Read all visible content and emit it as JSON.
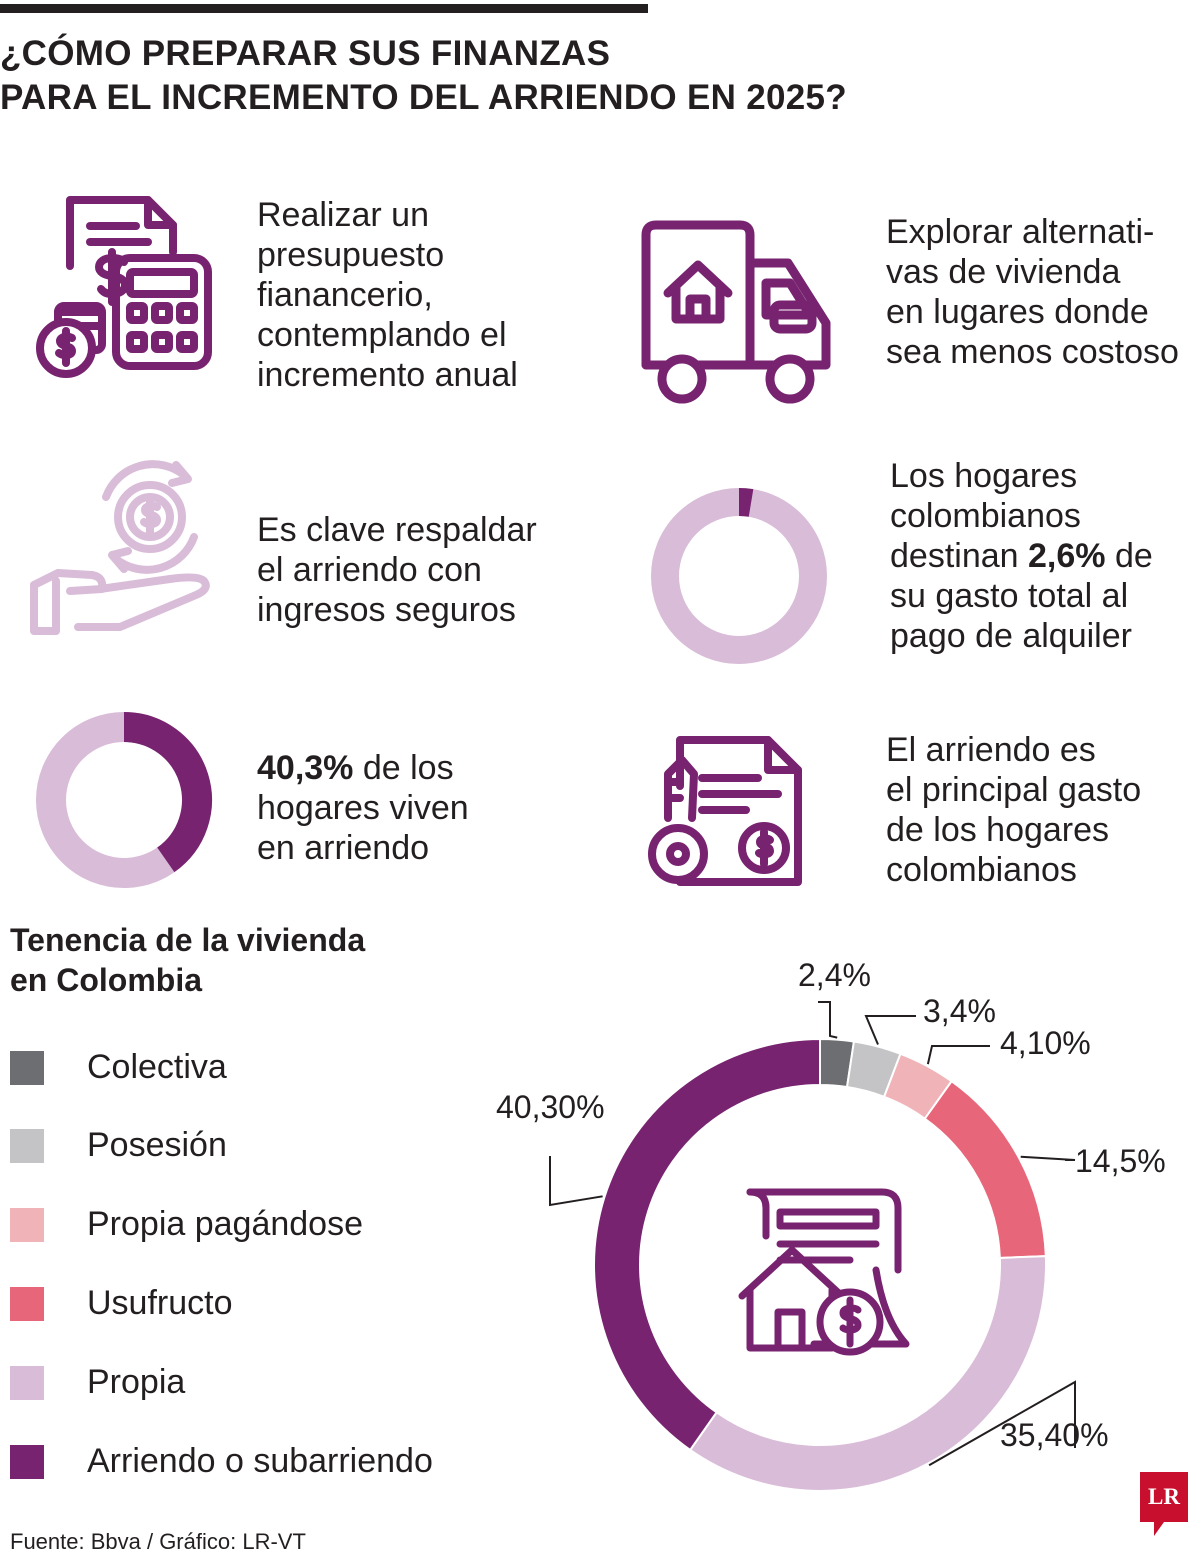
{
  "header": {
    "title_line1": "¿CÓMO PREPARAR SUS FINANZAS",
    "title_line2": "PARA EL INCREMENTO DEL ARRIENDO EN 2025?"
  },
  "tips": [
    {
      "icon": "budget-calculator-icon",
      "lines": [
        "Realizar un",
        "presupuesto",
        "fianancerio,",
        "contemplando el",
        "incremento anual"
      ]
    },
    {
      "icon": "moving-truck-icon",
      "lines": [
        "Explorar alternati-",
        "vas de vivienda",
        "en lugares donde",
        "sea menos costoso"
      ]
    },
    {
      "icon": "hand-money-cycle-icon",
      "lines": [
        "Es clave respaldar",
        "el arriendo con",
        "ingresos seguros"
      ]
    },
    {
      "icon": "rent-contract-key-icon",
      "lines": [
        "El arriendo es",
        "el principal gasto",
        "de los hogares",
        "colombianos"
      ]
    }
  ],
  "stat_rent_spend": {
    "value": 2.6,
    "line1": "Los hogares",
    "line2": "colombianos",
    "line3_pre": "destinan ",
    "highlight": "2,6%",
    "line3_post": " de",
    "line4": "su gasto total al",
    "line5": "pago de alquiler"
  },
  "stat_renters": {
    "value": 40.3,
    "highlight": "40,3%",
    "line1_post": " de los",
    "line2": "hogares viven",
    "line3": "en arriendo"
  },
  "colors": {
    "dark_purple": "#77236f",
    "light_purple": "#d9bcd8",
    "colectiva": "#6d6e71",
    "posesion": "#c4c4c6",
    "propia_pagandose": "#f0b4b8",
    "usufructo": "#e8667a",
    "propia": "#d9bcd8",
    "arriendo": "#77236f"
  },
  "chart_data": {
    "type": "pie",
    "title": "Tenencia de la vivienda en Colombia",
    "title_line1": "Tenencia de la vivienda",
    "title_line2": "en Colombia",
    "series": [
      {
        "name": "Colectiva",
        "value": 2.4,
        "label": "2,4%"
      },
      {
        "name": "Posesión",
        "value": 3.4,
        "label": "3,4%"
      },
      {
        "name": "Propia pagándose",
        "value": 4.1,
        "label": "4,10%"
      },
      {
        "name": "Usufructo",
        "value": 14.5,
        "label": "14,5%"
      },
      {
        "name": "Propia",
        "value": 35.4,
        "label": "35,40%"
      },
      {
        "name": "Arriendo o subarriendo",
        "value": 40.3,
        "label": "40,30%"
      }
    ],
    "legend_placement": "left",
    "center_icon": "house-contract-icon"
  },
  "footer": {
    "source": "Fuente: Bbva / Gráfico: LR-VT",
    "logo": "LR"
  }
}
